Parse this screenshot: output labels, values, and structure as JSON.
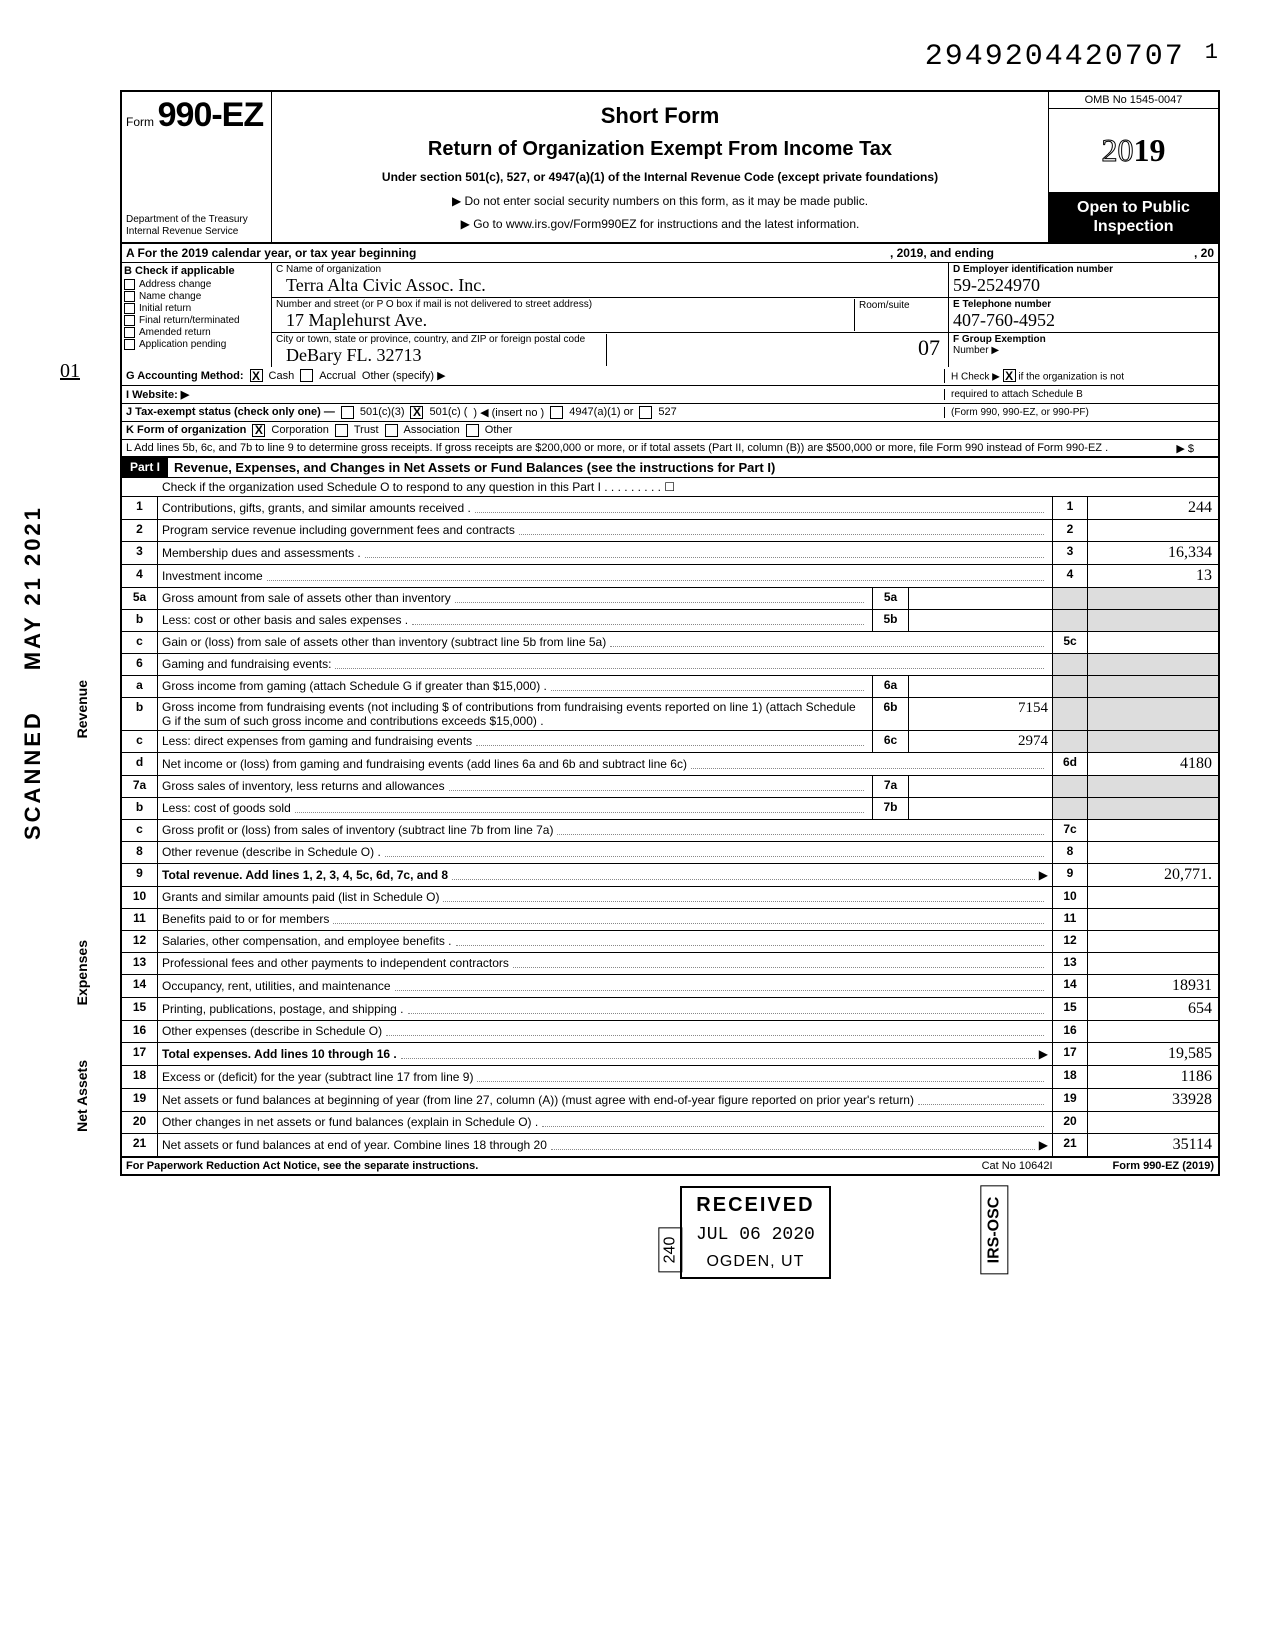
{
  "dln": "2949204420707",
  "dln_suffix": "1",
  "omb": "OMB No 1545-0047",
  "tax_year": "2019",
  "form_label": "Form",
  "form_num": "990-EZ",
  "title_short": "Short Form",
  "title_main": "Return of Organization Exempt From Income Tax",
  "subtitle": "Under section 501(c), 527, or 4947(a)(1) of the Internal Revenue Code (except private foundations)",
  "note_ssn": "▶ Do not enter social security numbers on this form, as it may be made public.",
  "note_url": "▶ Go to www.irs.gov/Form990EZ for instructions and the latest information.",
  "dept1": "Department of the Treasury",
  "dept2": "Internal Revenue Service",
  "open_public1": "Open to Public",
  "open_public2": "Inspection",
  "row_a": {
    "pre": "A For the 2019 calendar year, or tax year beginning",
    "mid": ", 2019, and ending",
    "suf": ", 20"
  },
  "col_b": {
    "hdr": "B Check if applicable",
    "items": [
      "Address change",
      "Name change",
      "Initial return",
      "Final return/terminated",
      "Amended return",
      "Application pending"
    ]
  },
  "col_c": {
    "name_lbl": "C Name of organization",
    "name_val": "Terra Alta Civic Assoc. Inc.",
    "street_lbl": "Number and street (or P O box if mail is not delivered to street address)",
    "street_val": "17 Maplehurst Ave.",
    "room_lbl": "Room/suite",
    "city_lbl": "City or town, state or province, country, and ZIP or foreign postal code",
    "city_val": "DeBary FL. 32713",
    "amended_mark": "07"
  },
  "col_d": {
    "lbl": "D Employer identification number",
    "val": "59-2524970"
  },
  "col_e": {
    "lbl": "E Telephone number",
    "val": "407-760-4952"
  },
  "col_f": {
    "lbl": "F Group Exemption",
    "lbl2": "Number ▶",
    "val": ""
  },
  "row_g": {
    "lbl": "G Accounting Method:",
    "cash": "Cash",
    "cash_checked": true,
    "accrual": "Accrual",
    "other": "Other (specify) ▶"
  },
  "row_h": {
    "txt1": "H Check ▶",
    "checked": true,
    "txt2": "if the organization is not",
    "txt3": "required to attach Schedule B",
    "txt4": "(Form 990, 990-EZ, or 990-PF)"
  },
  "row_i": {
    "lbl": "I Website: ▶",
    "val": ""
  },
  "row_j": {
    "lbl": "J Tax-exempt status (check only one) —",
    "c3": "501(c)(3)",
    "c": "501(c) (",
    "c_checked": true,
    "insert": ") ◀ (insert no )",
    "a4947": "4947(a)(1) or",
    "s527": "527"
  },
  "row_k": {
    "lbl": "K Form of organization",
    "corp": "Corporation",
    "corp_checked": true,
    "trust": "Trust",
    "assoc": "Association",
    "other": "Other"
  },
  "row_l": {
    "txt": "L Add lines 5b, 6c, and 7b to line 9 to determine gross receipts. If gross receipts are $200,000 or more, or if total assets (Part II, column (B)) are $500,000 or more, file Form 990 instead of Form 990-EZ .",
    "arrow": "▶  $"
  },
  "part1": {
    "hdr": "Part I",
    "title": "Revenue, Expenses, and Changes in Net Assets or Fund Balances (see the instructions for Part I)",
    "sched_o": "Check if the organization used Schedule O to respond to any question in this Part I . . . . . . . . . ☐"
  },
  "vlabels": {
    "rev": "Revenue",
    "exp": "Expenses",
    "net": "Net Assets"
  },
  "lines": {
    "1": {
      "n": "1",
      "d": "Contributions, gifts, grants, and similar amounts received .",
      "an": "1",
      "av": "244"
    },
    "2": {
      "n": "2",
      "d": "Program service revenue including government fees and contracts",
      "an": "2",
      "av": ""
    },
    "3": {
      "n": "3",
      "d": "Membership dues and assessments .",
      "an": "3",
      "av": "16,334"
    },
    "4": {
      "n": "4",
      "d": "Investment income",
      "an": "4",
      "av": "13"
    },
    "5a": {
      "n": "5a",
      "d": "Gross amount from sale of assets other than inventory",
      "sn": "5a",
      "sv": ""
    },
    "5b": {
      "n": "b",
      "d": "Less: cost or other basis and sales expenses .",
      "sn": "5b",
      "sv": ""
    },
    "5c": {
      "n": "c",
      "d": "Gain or (loss) from sale of assets other than inventory (subtract line 5b from line 5a)",
      "an": "5c",
      "av": ""
    },
    "6": {
      "n": "6",
      "d": "Gaming and fundraising events:"
    },
    "6a": {
      "n": "a",
      "d": "Gross income from gaming (attach Schedule G if greater than $15,000) .",
      "sn": "6a",
      "sv": ""
    },
    "6b": {
      "n": "b",
      "d": "Gross income from fundraising events (not including  $            of contributions from fundraising events reported on line 1) (attach Schedule G if the sum of such gross income and contributions exceeds $15,000) .",
      "sn": "6b",
      "sv": "7154"
    },
    "6c": {
      "n": "c",
      "d": "Less: direct expenses from gaming and fundraising events",
      "sn": "6c",
      "sv": "2974"
    },
    "6d": {
      "n": "d",
      "d": "Net income or (loss) from gaming and fundraising events (add lines 6a and 6b and subtract line 6c)",
      "an": "6d",
      "av": "4180"
    },
    "7a": {
      "n": "7a",
      "d": "Gross sales of inventory, less returns and allowances",
      "sn": "7a",
      "sv": ""
    },
    "7b": {
      "n": "b",
      "d": "Less: cost of goods sold",
      "sn": "7b",
      "sv": ""
    },
    "7c": {
      "n": "c",
      "d": "Gross profit or (loss) from sales of inventory (subtract line 7b from line 7a)",
      "an": "7c",
      "av": ""
    },
    "8": {
      "n": "8",
      "d": "Other revenue (describe in Schedule O) .",
      "an": "8",
      "av": ""
    },
    "9": {
      "n": "9",
      "d": "Total revenue. Add lines 1, 2, 3, 4, 5c, 6d, 7c, and 8",
      "an": "9",
      "av": "20,771.",
      "bold": true
    },
    "10": {
      "n": "10",
      "d": "Grants and similar amounts paid (list in Schedule O)",
      "an": "10",
      "av": ""
    },
    "11": {
      "n": "11",
      "d": "Benefits paid to or for members",
      "an": "11",
      "av": ""
    },
    "12": {
      "n": "12",
      "d": "Salaries, other compensation, and employee benefits .",
      "an": "12",
      "av": ""
    },
    "13": {
      "n": "13",
      "d": "Professional fees and other payments to independent contractors",
      "an": "13",
      "av": ""
    },
    "14": {
      "n": "14",
      "d": "Occupancy, rent, utilities, and maintenance",
      "an": "14",
      "av": "18931"
    },
    "15": {
      "n": "15",
      "d": "Printing, publications, postage, and shipping .",
      "an": "15",
      "av": "654"
    },
    "16": {
      "n": "16",
      "d": "Other expenses (describe in Schedule O)",
      "an": "16",
      "av": ""
    },
    "17": {
      "n": "17",
      "d": "Total expenses. Add lines 10 through 16 .",
      "an": "17",
      "av": "19,585",
      "bold": true
    },
    "18": {
      "n": "18",
      "d": "Excess or (deficit) for the year (subtract line 17 from line 9)",
      "an": "18",
      "av": "1186"
    },
    "19": {
      "n": "19",
      "d": "Net assets or fund balances at beginning of year (from line 27, column (A)) (must agree with end-of-year figure reported on prior year's return)",
      "an": "19",
      "av": "33928"
    },
    "20": {
      "n": "20",
      "d": "Other changes in net assets or fund balances (explain in Schedule O) .",
      "an": "20",
      "av": ""
    },
    "21": {
      "n": "21",
      "d": "Net assets or fund balances at end of year. Combine lines 18 through 20",
      "an": "21",
      "av": "35114"
    }
  },
  "footer": {
    "l": "For Paperwork Reduction Act Notice, see the separate instructions.",
    "m": "Cat No 10642I",
    "r": "Form 990-EZ (2019)"
  },
  "side_stamps": {
    "scanned": "SCANNED",
    "date": "MAY 21 2021"
  },
  "received": {
    "r1": "RECEIVED",
    "r2": "JUL 06 2020",
    "r3": "OGDEN, UT",
    "side": "240"
  },
  "irs_osc": "IRS-OSC",
  "margin_mark": "01"
}
